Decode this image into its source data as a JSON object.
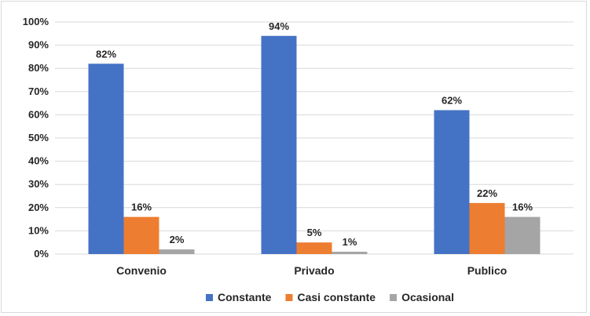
{
  "chart_data": {
    "type": "bar",
    "categories": [
      "Convenio",
      "Privado",
      "Publico"
    ],
    "series": [
      {
        "name": "Constante",
        "values": [
          82,
          94,
          62
        ],
        "labels": [
          "82%",
          "94%",
          "62%"
        ],
        "color": "#4472c4"
      },
      {
        "name": "Casi constante",
        "values": [
          16,
          5,
          22
        ],
        "labels": [
          "16%",
          "5%",
          "22%"
        ],
        "color": "#ed7d31"
      },
      {
        "name": "Ocasional",
        "values": [
          2,
          1,
          16
        ],
        "labels": [
          "2%",
          "1%",
          "16%"
        ],
        "color": "#a5a5a5"
      }
    ],
    "ylim": [
      0,
      100
    ],
    "yticks": [
      0,
      10,
      20,
      30,
      40,
      50,
      60,
      70,
      80,
      90,
      100
    ],
    "ytick_labels": [
      "0%",
      "10%",
      "20%",
      "30%",
      "40%",
      "50%",
      "60%",
      "70%",
      "80%",
      "90%",
      "100%"
    ],
    "grid": true,
    "legend_position": "bottom",
    "gridline_color": "#d9d9d9"
  }
}
